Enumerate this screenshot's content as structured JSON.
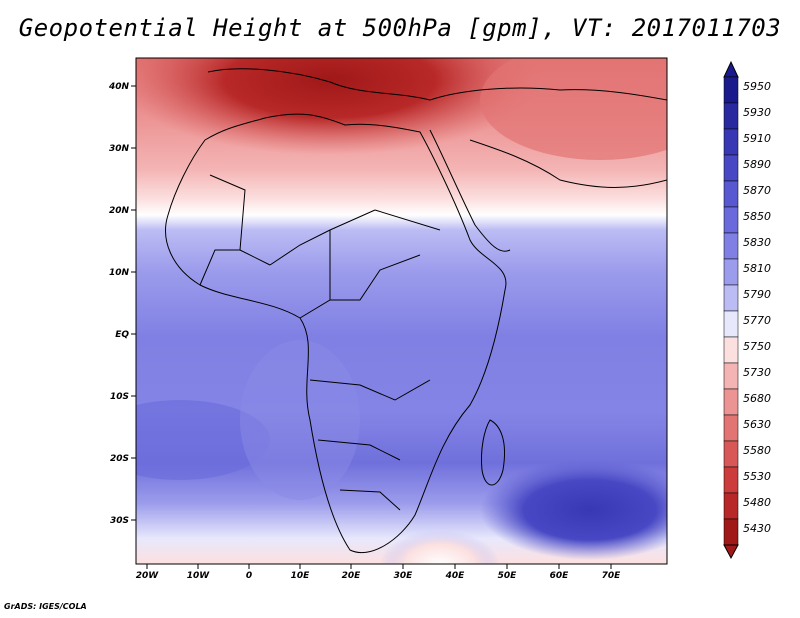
{
  "title": "Geopotential Height at 500hPa [gpm], VT: 2017011703",
  "footer": "GrADS: IGES/COLA",
  "map": {
    "lon_labels": [
      "20W",
      "10W",
      "0",
      "10E",
      "20E",
      "30E",
      "40E",
      "50E",
      "60E",
      "70E"
    ],
    "lat_labels": [
      "40N",
      "30N",
      "20N",
      "10N",
      "EQ",
      "10S",
      "20S",
      "30S"
    ]
  },
  "colorbar": {
    "levels": [
      "5950",
      "5930",
      "5910",
      "5890",
      "5870",
      "5850",
      "5830",
      "5810",
      "5790",
      "5770",
      "5750",
      "5730",
      "5680",
      "5630",
      "5580",
      "5530",
      "5480",
      "5430"
    ],
    "colors": [
      "#1a1a8c",
      "#2a2aa0",
      "#3838b4",
      "#4848c4",
      "#5858d0",
      "#6a6adc",
      "#8080e4",
      "#9c9cec",
      "#bcbcf4",
      "#e8e8fc",
      "#fce0e0",
      "#f4b4b4",
      "#ec9494",
      "#e27474",
      "#d85858",
      "#cc3c3c",
      "#b82828",
      "#a01818"
    ]
  }
}
